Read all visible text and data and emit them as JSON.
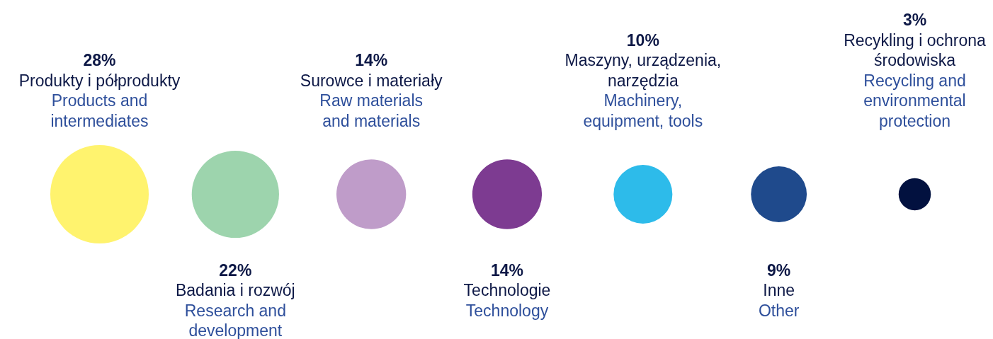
{
  "chart_data": {
    "type": "other",
    "categories": [
      "Produkty i półprodukty",
      "Badania i rozwój",
      "Surowce i materiały",
      "Technologie",
      "Maszyny, urządzenia,\nnarzędzia",
      "Inne",
      "Recykling i ochrona\nśrodowiska"
    ],
    "values": [
      28,
      22,
      14,
      14,
      10,
      9,
      3
    ],
    "value_labels": [
      "28%",
      "22%",
      "14%",
      "14%",
      "10%",
      "9%",
      "3%"
    ],
    "colors": [
      "#fff36e",
      "#9dd4ad",
      "#bf9cc9",
      "#7d3b91",
      "#2dbbea",
      "#1f4a8c",
      "#02113f"
    ],
    "annotations": [
      "Products and\nintermediates",
      "Research and\ndevelopment",
      "Raw materials\nand materials",
      "Technology",
      "Machinery,\nequipment, tools",
      "Other",
      "Recycling and\nenvironmental\nprotection"
    ]
  }
}
